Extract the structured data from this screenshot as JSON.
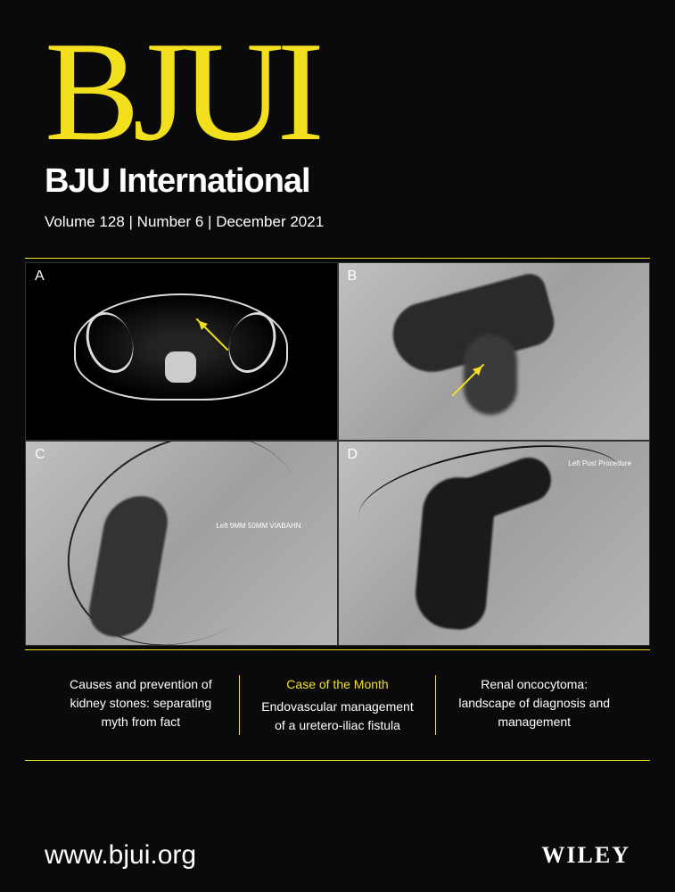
{
  "journal": {
    "logo": "BJUI",
    "subtitle": "BJU International",
    "volume": "Volume 128",
    "number": "Number 6",
    "date": "December 2021",
    "issue_separator": " | "
  },
  "cover_image": {
    "panels": [
      {
        "label": "A",
        "type": "ct-scan",
        "background": "#000000",
        "arrow_color": "#f2e01f"
      },
      {
        "label": "B",
        "type": "angiography",
        "background": "#b8b8b8",
        "arrow_color": "#f2e01f"
      },
      {
        "label": "C",
        "type": "angiography",
        "background": "#b0b0b0",
        "overlay_text": "Left\n9MM 50MM VIABAHN"
      },
      {
        "label": "D",
        "type": "angiography",
        "background": "#a8a8a8",
        "overlay_text": "Left\nPost Procedure"
      }
    ]
  },
  "articles": {
    "left": {
      "text": "Causes and prevention of kidney stones: separating myth from fact"
    },
    "center": {
      "heading": "Case of the Month",
      "text": "Endovascular management of a uretero-iliac fistula"
    },
    "right": {
      "text": "Renal oncocytoma: landscape of diagnosis and management"
    }
  },
  "footer": {
    "website": "www.bjui.org",
    "publisher": "WILEY"
  },
  "colors": {
    "background": "#0a0a0a",
    "accent": "#f2e01f",
    "text": "#ffffff"
  }
}
